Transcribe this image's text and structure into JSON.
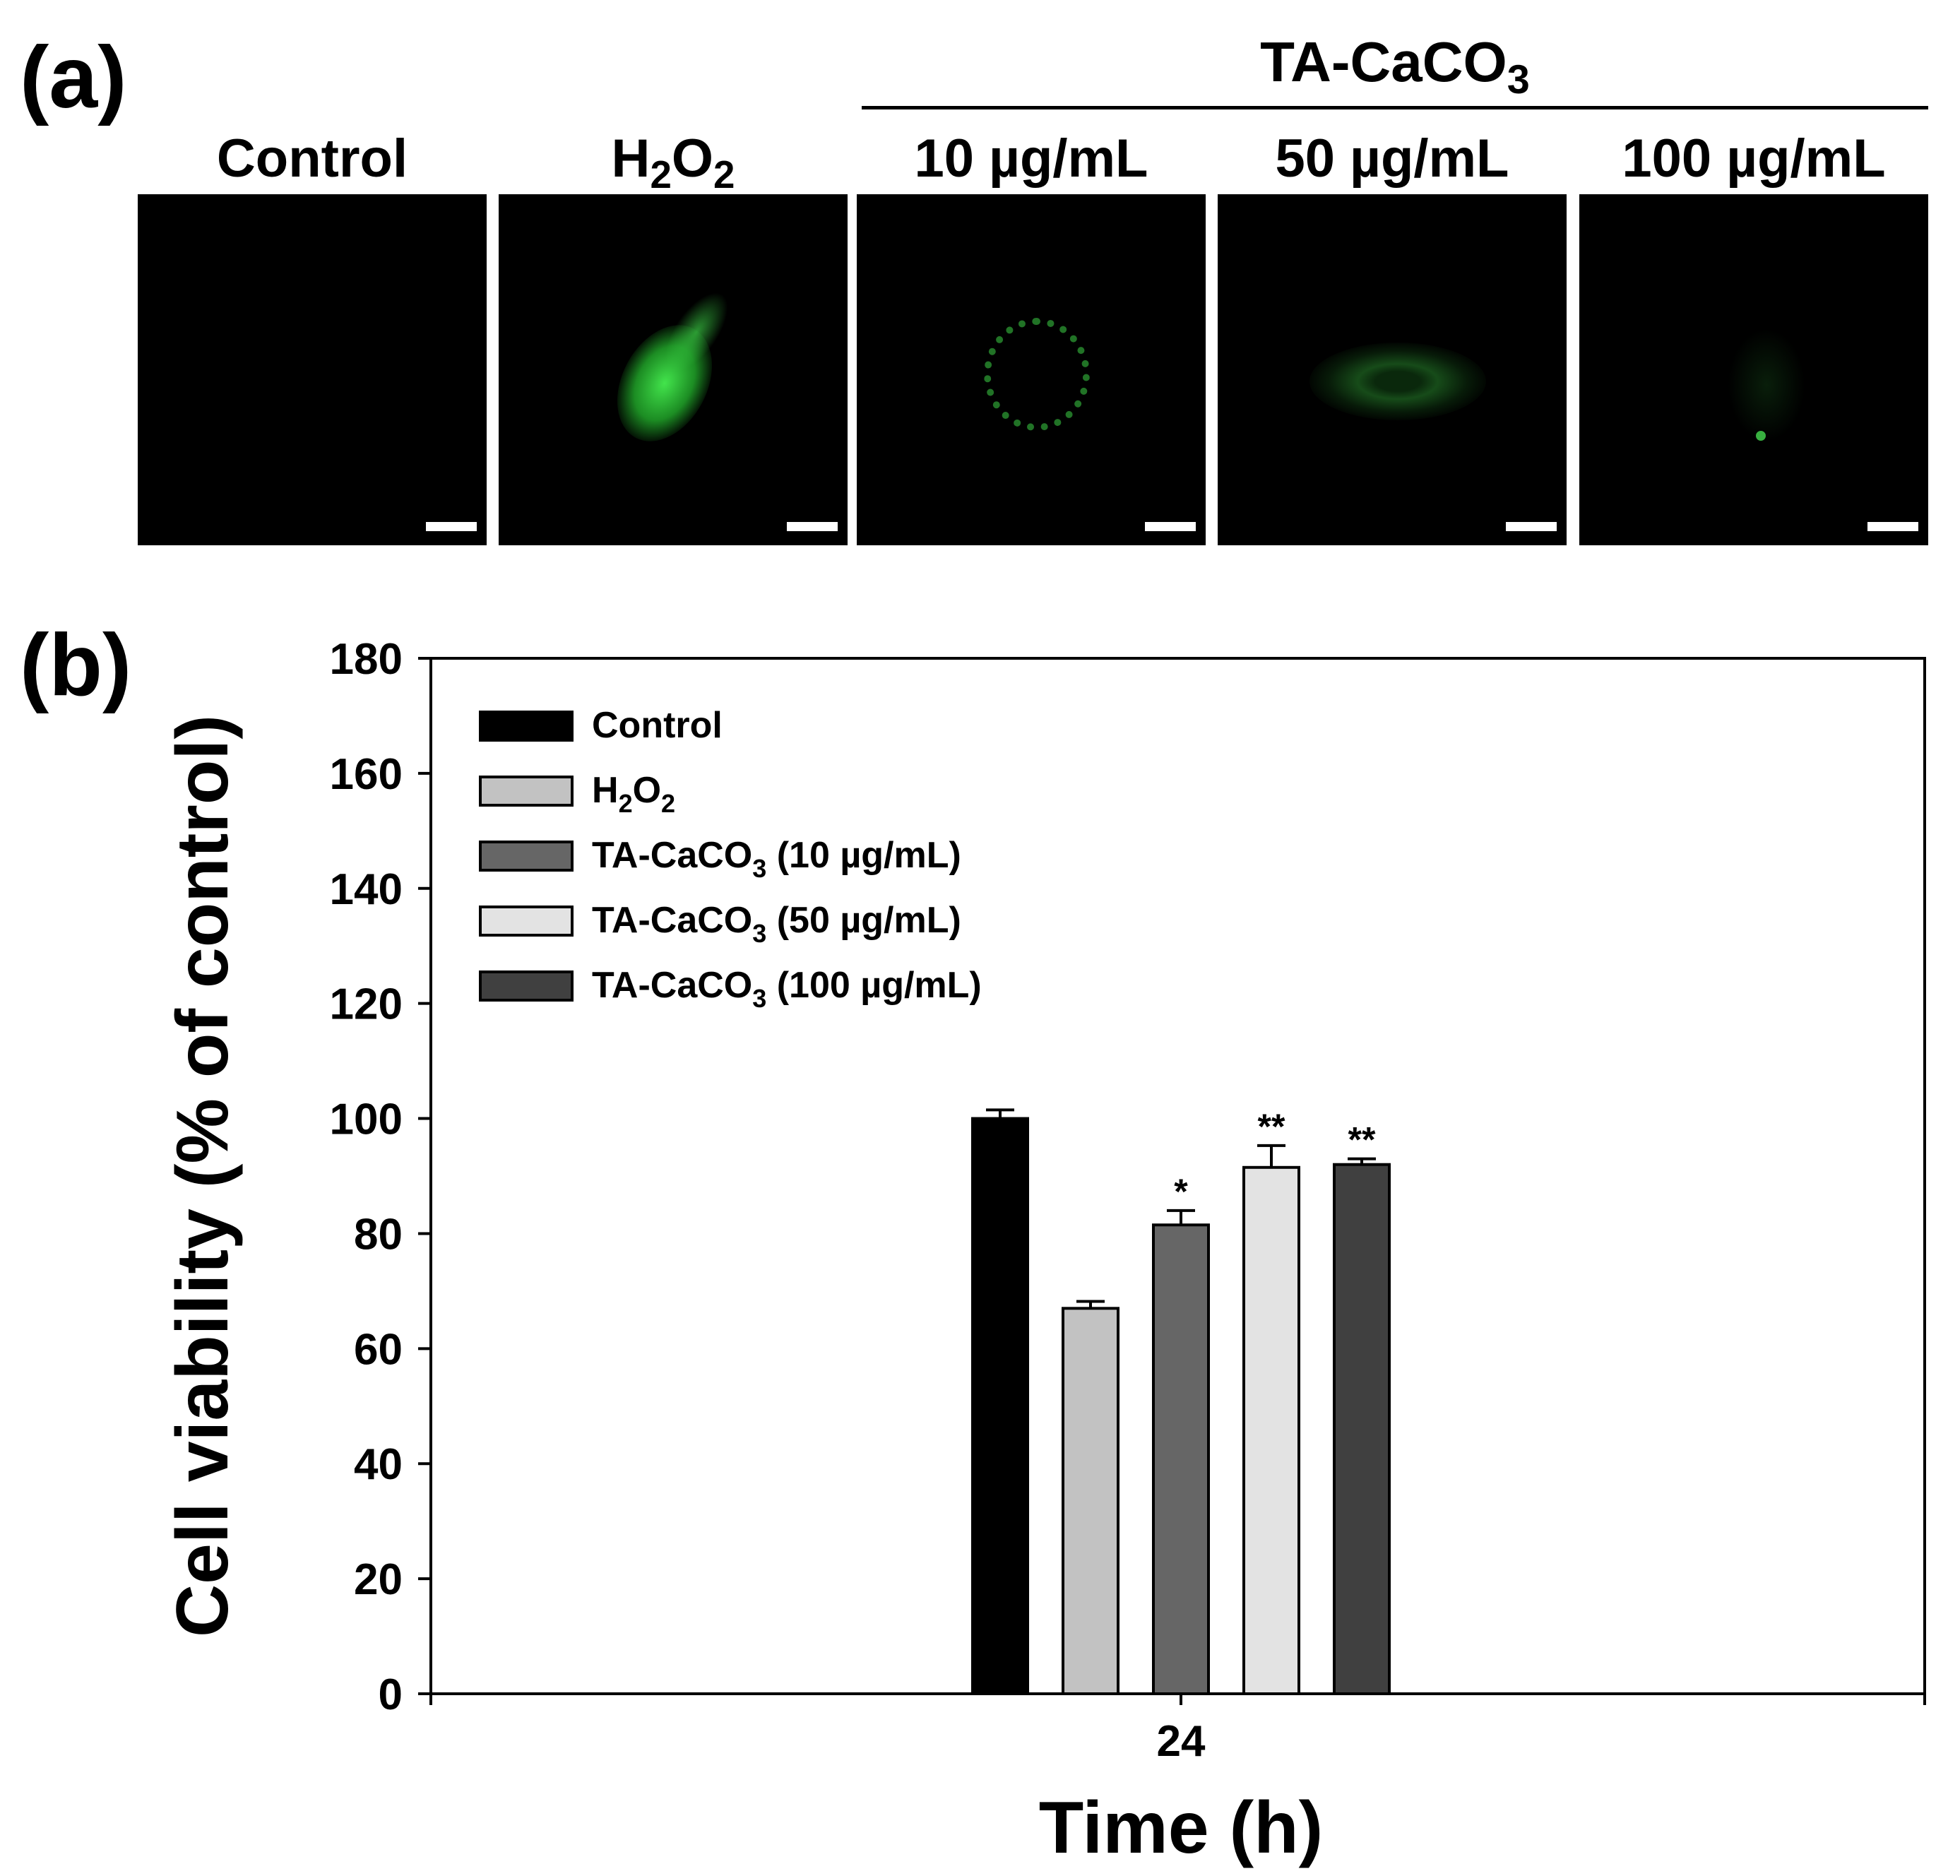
{
  "panels": {
    "a_label": "(a)",
    "b_label": "(b)"
  },
  "micrographs": {
    "group_header": "TA-CaCO",
    "group_header_sub": "3",
    "columns": [
      {
        "label": "Control",
        "sub": "",
        "suffix": ""
      },
      {
        "label": "H",
        "sub": "2",
        "suffix": "O",
        "sub2": "2"
      },
      {
        "label": "10 µg/mL"
      },
      {
        "label": "50 µg/mL"
      },
      {
        "label": "100 µg/mL"
      }
    ],
    "colors": {
      "background": "#000000",
      "fluorescence": "#33e04a",
      "scale_bar": "#ffffff"
    }
  },
  "chart_data": {
    "type": "bar",
    "xlabel": "Time (h)",
    "ylabel": "Cell viability (% of control)",
    "categories": [
      "24"
    ],
    "ylim": [
      0,
      180
    ],
    "yticks": [
      "0",
      "20",
      "40",
      "60",
      "80",
      "100",
      "120",
      "140",
      "160",
      "180"
    ],
    "legend_position": "top-left",
    "grid": false,
    "series": [
      {
        "name": "Control",
        "name_main": "Control",
        "name_sub": "",
        "name_rest": "",
        "values": [
          100
        ],
        "error": [
          1.5
        ],
        "annotation": "",
        "color": "#000000"
      },
      {
        "name": "H2O2",
        "name_main": "H",
        "name_sub": "2",
        "name_rest": "O",
        "name_sub2": "2",
        "values": [
          67
        ],
        "error": [
          1.2
        ],
        "annotation": "",
        "color": "#c2c2c2"
      },
      {
        "name": "TA-CaCO3 (10 µg/mL)",
        "name_main": "TA-CaCO",
        "name_sub": "3",
        "name_rest": " (10 µg/mL)",
        "values": [
          81.5
        ],
        "error": [
          2.5
        ],
        "annotation": "*",
        "color": "#666666"
      },
      {
        "name": "TA-CaCO3 (50 µg/mL)",
        "name_main": "TA-CaCO",
        "name_sub": "3",
        "name_rest": " (50 µg/mL)",
        "values": [
          91.5
        ],
        "error": [
          3.8
        ],
        "annotation": "**",
        "color": "#e3e3e3"
      },
      {
        "name": "TA-CaCO3 (100 µg/mL)",
        "name_main": "TA-CaCO",
        "name_sub": "3",
        "name_rest": " (100 µg/mL)",
        "values": [
          92
        ],
        "error": [
          1.0
        ],
        "annotation": "**",
        "color": "#404040"
      }
    ]
  }
}
